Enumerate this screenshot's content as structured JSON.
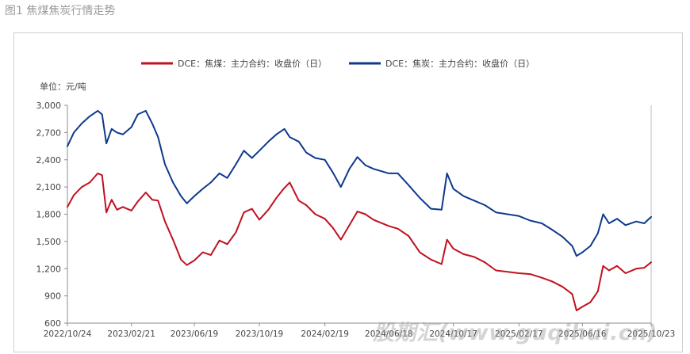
{
  "figure_caption": "图1 焦煤焦炭行情走势",
  "watermark": "股期汇(www.guqihui.cn)",
  "colors": {
    "coking_coal": "#c0111f",
    "coke": "#0d3a8c",
    "axis": "#8c8c8c",
    "text": "#444444"
  },
  "chart_data": {
    "type": "line",
    "unit_label": "单位：元/吨",
    "ylim": [
      600,
      3000
    ],
    "y_ticks": [
      "600",
      "900",
      "1,200",
      "1,500",
      "1,800",
      "2,100",
      "2,400",
      "2,700",
      "3,000"
    ],
    "y_tick_values": [
      600,
      900,
      1200,
      1500,
      1800,
      2100,
      2400,
      2700,
      3000
    ],
    "x_ticks": [
      "2022/10/24",
      "2023/02/21",
      "2023/06/19",
      "2023/10/19",
      "2024/02/19",
      "2024/06/18",
      "2024/10/17",
      "2025/02/17",
      "2025/06/16",
      "2025/10/23"
    ],
    "x_range": [
      "2022/10/24",
      "2025/10/23"
    ],
    "grid": false,
    "legend_position": "top",
    "series": [
      {
        "name": "DCE：焦煤：主力合约：收盘价（日）",
        "color": "#c0111f",
        "points": [
          [
            "2022/10/24",
            1880
          ],
          [
            "2022/11/05",
            2010
          ],
          [
            "2022/11/20",
            2100
          ],
          [
            "2022/12/05",
            2150
          ],
          [
            "2022/12/20",
            2250
          ],
          [
            "2022/12/28",
            2230
          ],
          [
            "2023/01/05",
            1820
          ],
          [
            "2023/01/15",
            1960
          ],
          [
            "2023/01/25",
            1850
          ],
          [
            "2023/02/05",
            1880
          ],
          [
            "2023/02/21",
            1840
          ],
          [
            "2023/03/05",
            1940
          ],
          [
            "2023/03/20",
            2040
          ],
          [
            "2023/04/01",
            1960
          ],
          [
            "2023/04/12",
            1950
          ],
          [
            "2023/04/25",
            1720
          ],
          [
            "2023/05/10",
            1520
          ],
          [
            "2023/05/25",
            1300
          ],
          [
            "2023/06/05",
            1240
          ],
          [
            "2023/06/19",
            1290
          ],
          [
            "2023/07/05",
            1380
          ],
          [
            "2023/07/20",
            1350
          ],
          [
            "2023/08/05",
            1510
          ],
          [
            "2023/08/20",
            1470
          ],
          [
            "2023/09/05",
            1600
          ],
          [
            "2023/09/20",
            1820
          ],
          [
            "2023/10/05",
            1860
          ],
          [
            "2023/10/19",
            1740
          ],
          [
            "2023/11/05",
            1850
          ],
          [
            "2023/11/20",
            1980
          ],
          [
            "2023/12/05",
            2090
          ],
          [
            "2023/12/15",
            2150
          ],
          [
            "2024/01/01",
            1950
          ],
          [
            "2024/01/15",
            1900
          ],
          [
            "2024/02/01",
            1800
          ],
          [
            "2024/02/19",
            1750
          ],
          [
            "2024/03/05",
            1650
          ],
          [
            "2024/03/20",
            1520
          ],
          [
            "2024/04/05",
            1680
          ],
          [
            "2024/04/20",
            1830
          ],
          [
            "2024/05/05",
            1800
          ],
          [
            "2024/05/20",
            1740
          ],
          [
            "2024/06/18",
            1670
          ],
          [
            "2024/07/05",
            1640
          ],
          [
            "2024/07/25",
            1560
          ],
          [
            "2024/08/15",
            1380
          ],
          [
            "2024/09/05",
            1300
          ],
          [
            "2024/09/25",
            1250
          ],
          [
            "2024/10/05",
            1520
          ],
          [
            "2024/10/17",
            1420
          ],
          [
            "2024/11/05",
            1360
          ],
          [
            "2024/11/25",
            1330
          ],
          [
            "2024/12/15",
            1270
          ],
          [
            "2025/01/05",
            1180
          ],
          [
            "2025/02/17",
            1150
          ],
          [
            "2025/03/10",
            1140
          ],
          [
            "2025/04/01",
            1100
          ],
          [
            "2025/04/20",
            1060
          ],
          [
            "2025/05/10",
            1000
          ],
          [
            "2025/05/28",
            920
          ],
          [
            "2025/06/05",
            740
          ],
          [
            "2025/06/16",
            780
          ],
          [
            "2025/07/01",
            830
          ],
          [
            "2025/07/15",
            950
          ],
          [
            "2025/07/25",
            1230
          ],
          [
            "2025/08/05",
            1180
          ],
          [
            "2025/08/20",
            1230
          ],
          [
            "2025/09/05",
            1150
          ],
          [
            "2025/09/25",
            1200
          ],
          [
            "2025/10/10",
            1210
          ],
          [
            "2025/10/23",
            1270
          ]
        ]
      },
      {
        "name": "DCE：焦炭：主力合约：收盘价（日）",
        "color": "#0d3a8c",
        "points": [
          [
            "2022/10/24",
            2550
          ],
          [
            "2022/11/05",
            2700
          ],
          [
            "2022/11/20",
            2800
          ],
          [
            "2022/12/05",
            2880
          ],
          [
            "2022/12/20",
            2940
          ],
          [
            "2022/12/28",
            2900
          ],
          [
            "2023/01/05",
            2580
          ],
          [
            "2023/01/15",
            2740
          ],
          [
            "2023/01/25",
            2700
          ],
          [
            "2023/02/05",
            2680
          ],
          [
            "2023/02/21",
            2760
          ],
          [
            "2023/03/05",
            2900
          ],
          [
            "2023/03/20",
            2940
          ],
          [
            "2023/04/01",
            2800
          ],
          [
            "2023/04/12",
            2650
          ],
          [
            "2023/04/25",
            2350
          ],
          [
            "2023/05/10",
            2150
          ],
          [
            "2023/05/25",
            2000
          ],
          [
            "2023/06/05",
            1920
          ],
          [
            "2023/06/19",
            2000
          ],
          [
            "2023/07/05",
            2080
          ],
          [
            "2023/07/20",
            2150
          ],
          [
            "2023/08/05",
            2250
          ],
          [
            "2023/08/20",
            2200
          ],
          [
            "2023/09/05",
            2350
          ],
          [
            "2023/09/20",
            2500
          ],
          [
            "2023/10/05",
            2420
          ],
          [
            "2023/10/19",
            2500
          ],
          [
            "2023/11/05",
            2600
          ],
          [
            "2023/11/20",
            2680
          ],
          [
            "2023/12/05",
            2740
          ],
          [
            "2023/12/15",
            2650
          ],
          [
            "2024/01/01",
            2600
          ],
          [
            "2024/01/15",
            2480
          ],
          [
            "2024/02/01",
            2420
          ],
          [
            "2024/02/19",
            2400
          ],
          [
            "2024/03/05",
            2260
          ],
          [
            "2024/03/20",
            2100
          ],
          [
            "2024/04/05",
            2300
          ],
          [
            "2024/04/20",
            2430
          ],
          [
            "2024/05/05",
            2340
          ],
          [
            "2024/05/20",
            2300
          ],
          [
            "2024/06/18",
            2250
          ],
          [
            "2024/07/05",
            2250
          ],
          [
            "2024/07/25",
            2120
          ],
          [
            "2024/08/15",
            1980
          ],
          [
            "2024/09/05",
            1860
          ],
          [
            "2024/09/25",
            1850
          ],
          [
            "2024/10/05",
            2250
          ],
          [
            "2024/10/17",
            2080
          ],
          [
            "2024/11/05",
            2000
          ],
          [
            "2024/11/25",
            1950
          ],
          [
            "2024/12/15",
            1900
          ],
          [
            "2025/01/05",
            1820
          ],
          [
            "2025/02/17",
            1780
          ],
          [
            "2025/03/10",
            1730
          ],
          [
            "2025/04/01",
            1700
          ],
          [
            "2025/04/20",
            1630
          ],
          [
            "2025/05/10",
            1550
          ],
          [
            "2025/05/28",
            1450
          ],
          [
            "2025/06/05",
            1340
          ],
          [
            "2025/06/16",
            1380
          ],
          [
            "2025/07/01",
            1450
          ],
          [
            "2025/07/15",
            1590
          ],
          [
            "2025/07/25",
            1800
          ],
          [
            "2025/08/05",
            1700
          ],
          [
            "2025/08/20",
            1750
          ],
          [
            "2025/09/05",
            1680
          ],
          [
            "2025/09/25",
            1720
          ],
          [
            "2025/10/10",
            1700
          ],
          [
            "2025/10/23",
            1770
          ]
        ]
      }
    ]
  }
}
